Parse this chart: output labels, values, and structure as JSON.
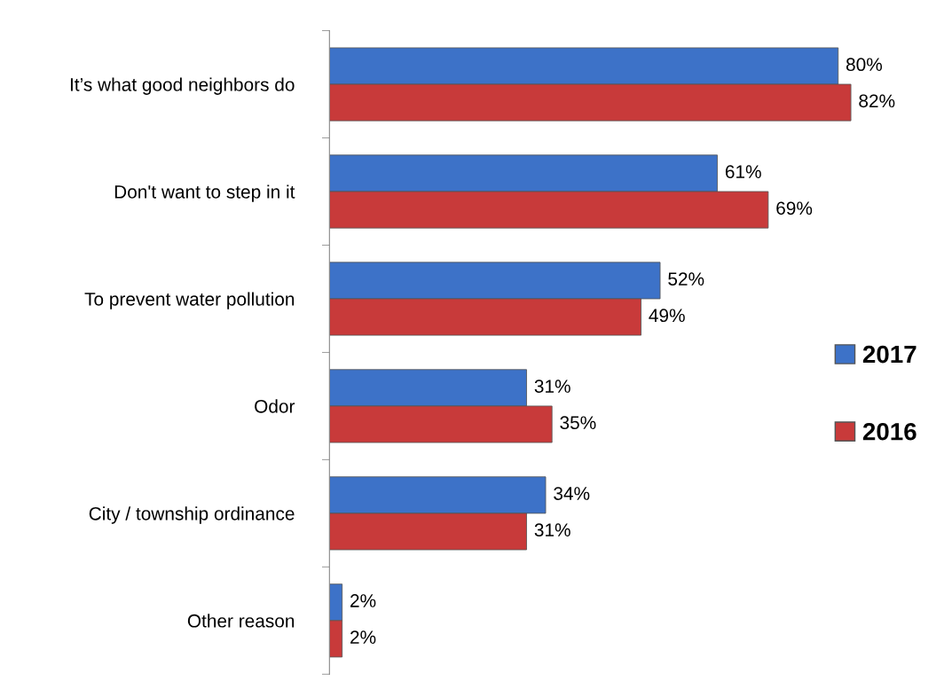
{
  "chart_data": {
    "type": "bar",
    "orientation": "horizontal",
    "categories": [
      "It’s what good neighbors do",
      "Don't want to step in it",
      "To prevent water pollution",
      "Odor",
      "City / township ordinance",
      "Other reason"
    ],
    "series": [
      {
        "name": "2017",
        "color": "#3d72c8",
        "values": [
          80,
          61,
          52,
          31,
          34,
          2
        ],
        "value_labels": [
          "80%",
          "61%",
          "52%",
          "31%",
          "34%",
          "2%"
        ]
      },
      {
        "name": "2016",
        "color": "#c83a3a",
        "values": [
          82,
          69,
          49,
          35,
          31,
          2
        ],
        "value_labels": [
          "82%",
          "69%",
          "49%",
          "35%",
          "31%",
          "2%"
        ]
      }
    ],
    "legend": "right",
    "grid": false
  }
}
